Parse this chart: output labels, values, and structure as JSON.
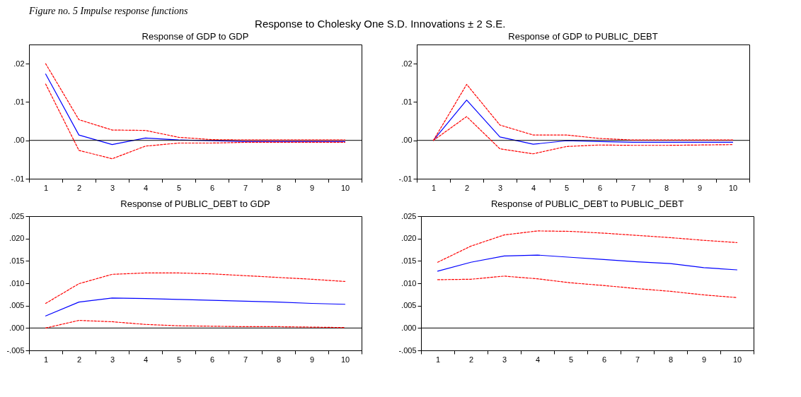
{
  "chart_data": [
    {
      "type": "line",
      "title": "Response of GDP to GDP",
      "annotations": [
        "Figure no. 5 Impulse response functions",
        "Response to Cholesky One S.D. Innovations ± 2 S.E."
      ],
      "categories": [
        "1",
        "2",
        "3",
        "4",
        "5",
        "6",
        "7",
        "8",
        "9",
        "10"
      ],
      "ylim": [
        -0.01,
        0.025
      ],
      "yticks": [
        {
          "value": -0.01,
          "label": "-.01"
        },
        {
          "value": 0,
          "label": ".00"
        },
        {
          "value": 0.01,
          "label": ".01"
        },
        {
          "value": 0.02,
          "label": ".02"
        }
      ],
      "grid": false,
      "ref_lines": [
        {
          "axis": "y",
          "value": 0,
          "color": "#000000"
        }
      ],
      "series": [
        {
          "color": "#0000ff",
          "line_style": "solid",
          "values": [
            0.0173,
            0.0014,
            -0.0011,
            0.0006,
            0.0001,
            -0.0001,
            -0.0003,
            -0.0003,
            -0.0003,
            -0.0003
          ]
        },
        {
          "color": "#ff0000",
          "line_style": "dashed",
          "values": [
            0.02,
            0.0054,
            0.0027,
            0.0026,
            0.0008,
            0.0002,
            0.0001,
            0.0001,
            0.0001,
            0.0001
          ]
        },
        {
          "color": "#ff0000",
          "line_style": "dashed",
          "values": [
            0.0147,
            -0.0026,
            -0.0048,
            -0.0015,
            -0.0007,
            -0.0007,
            -0.0005,
            -0.0005,
            -0.0005,
            -0.0005
          ]
        }
      ]
    },
    {
      "type": "line",
      "title": "Response of GDP to PUBLIC_DEBT",
      "categories": [
        "1",
        "2",
        "3",
        "4",
        "5",
        "6",
        "7",
        "8",
        "9",
        "10"
      ],
      "ylim": [
        -0.01,
        0.025
      ],
      "yticks": [
        {
          "value": -0.01,
          "label": "-.01"
        },
        {
          "value": 0,
          "label": ".00"
        },
        {
          "value": 0.01,
          "label": ".01"
        },
        {
          "value": 0.02,
          "label": ".02"
        }
      ],
      "grid": false,
      "ref_lines": [
        {
          "axis": "y",
          "value": 0,
          "color": "#000000"
        }
      ],
      "series": [
        {
          "color": "#0000ff",
          "line_style": "solid",
          "values": [
            0,
            0.0105,
            0.0009,
            -0.001,
            -0.0001,
            -0.0003,
            -0.0005,
            -0.0005,
            -0.0005,
            -0.0005
          ]
        },
        {
          "color": "#ff0000",
          "line_style": "dashed",
          "values": [
            0,
            0.0146,
            0.004,
            0.0014,
            0.0014,
            0.0005,
            0.0001,
            0.0001,
            0.0001,
            0.0001
          ]
        },
        {
          "color": "#ff0000",
          "line_style": "dashed",
          "values": [
            0,
            0.0062,
            -0.0022,
            -0.0035,
            -0.0016,
            -0.0012,
            -0.0013,
            -0.0013,
            -0.0012,
            -0.0011
          ]
        }
      ]
    },
    {
      "type": "line",
      "title": "Response of PUBLIC_DEBT to GDP",
      "categories": [
        "1",
        "2",
        "3",
        "4",
        "5",
        "6",
        "7",
        "8",
        "9",
        "10"
      ],
      "ylim": [
        -0.005,
        0.025
      ],
      "yticks": [
        {
          "value": -0.005,
          "label": "-.005"
        },
        {
          "value": 0,
          "label": ".000"
        },
        {
          "value": 0.005,
          "label": ".005"
        },
        {
          "value": 0.01,
          "label": ".010"
        },
        {
          "value": 0.015,
          "label": ".015"
        },
        {
          "value": 0.02,
          "label": ".020"
        },
        {
          "value": 0.025,
          "label": ".025"
        }
      ],
      "grid": false,
      "ref_lines": [
        {
          "axis": "y",
          "value": 0,
          "color": "#000000"
        }
      ],
      "series": [
        {
          "color": "#0000ff",
          "line_style": "solid",
          "values": [
            0.0027,
            0.0058,
            0.0067,
            0.0066,
            0.0064,
            0.0062,
            0.006,
            0.0058,
            0.0055,
            0.0053
          ]
        },
        {
          "color": "#ff0000",
          "line_style": "dashed",
          "values": [
            0.0055,
            0.0099,
            0.012,
            0.0123,
            0.0123,
            0.0121,
            0.0117,
            0.0113,
            0.0109,
            0.0104
          ]
        },
        {
          "color": "#ff0000",
          "line_style": "dashed",
          "values": [
            0.0,
            0.0017,
            0.0014,
            0.0008,
            0.0005,
            0.0004,
            0.0003,
            0.0003,
            0.0002,
            0.0001
          ]
        }
      ]
    },
    {
      "type": "line",
      "title": "Response of PUBLIC_DEBT to PUBLIC_DEBT",
      "categories": [
        "1",
        "2",
        "3",
        "4",
        "5",
        "6",
        "7",
        "8",
        "9",
        "10"
      ],
      "ylim": [
        -0.005,
        0.025
      ],
      "yticks": [
        {
          "value": -0.005,
          "label": "-.005"
        },
        {
          "value": 0,
          "label": ".000"
        },
        {
          "value": 0.005,
          "label": ".005"
        },
        {
          "value": 0.01,
          "label": ".010"
        },
        {
          "value": 0.015,
          "label": ".015"
        },
        {
          "value": 0.02,
          "label": ".020"
        },
        {
          "value": 0.025,
          "label": ".025"
        }
      ],
      "grid": false,
      "ref_lines": [
        {
          "axis": "y",
          "value": 0,
          "color": "#000000"
        }
      ],
      "series": [
        {
          "color": "#0000ff",
          "line_style": "solid",
          "values": [
            0.0127,
            0.0147,
            0.0161,
            0.0163,
            0.0158,
            0.0153,
            0.0148,
            0.0144,
            0.0135,
            0.013
          ]
        },
        {
          "color": "#ff0000",
          "line_style": "dashed",
          "values": [
            0.0147,
            0.0183,
            0.0208,
            0.0217,
            0.0216,
            0.0212,
            0.0207,
            0.0202,
            0.0196,
            0.0191
          ]
        },
        {
          "color": "#ff0000",
          "line_style": "dashed",
          "values": [
            0.0108,
            0.0109,
            0.0116,
            0.011,
            0.0101,
            0.0095,
            0.0088,
            0.0082,
            0.0074,
            0.0068
          ]
        }
      ]
    }
  ]
}
